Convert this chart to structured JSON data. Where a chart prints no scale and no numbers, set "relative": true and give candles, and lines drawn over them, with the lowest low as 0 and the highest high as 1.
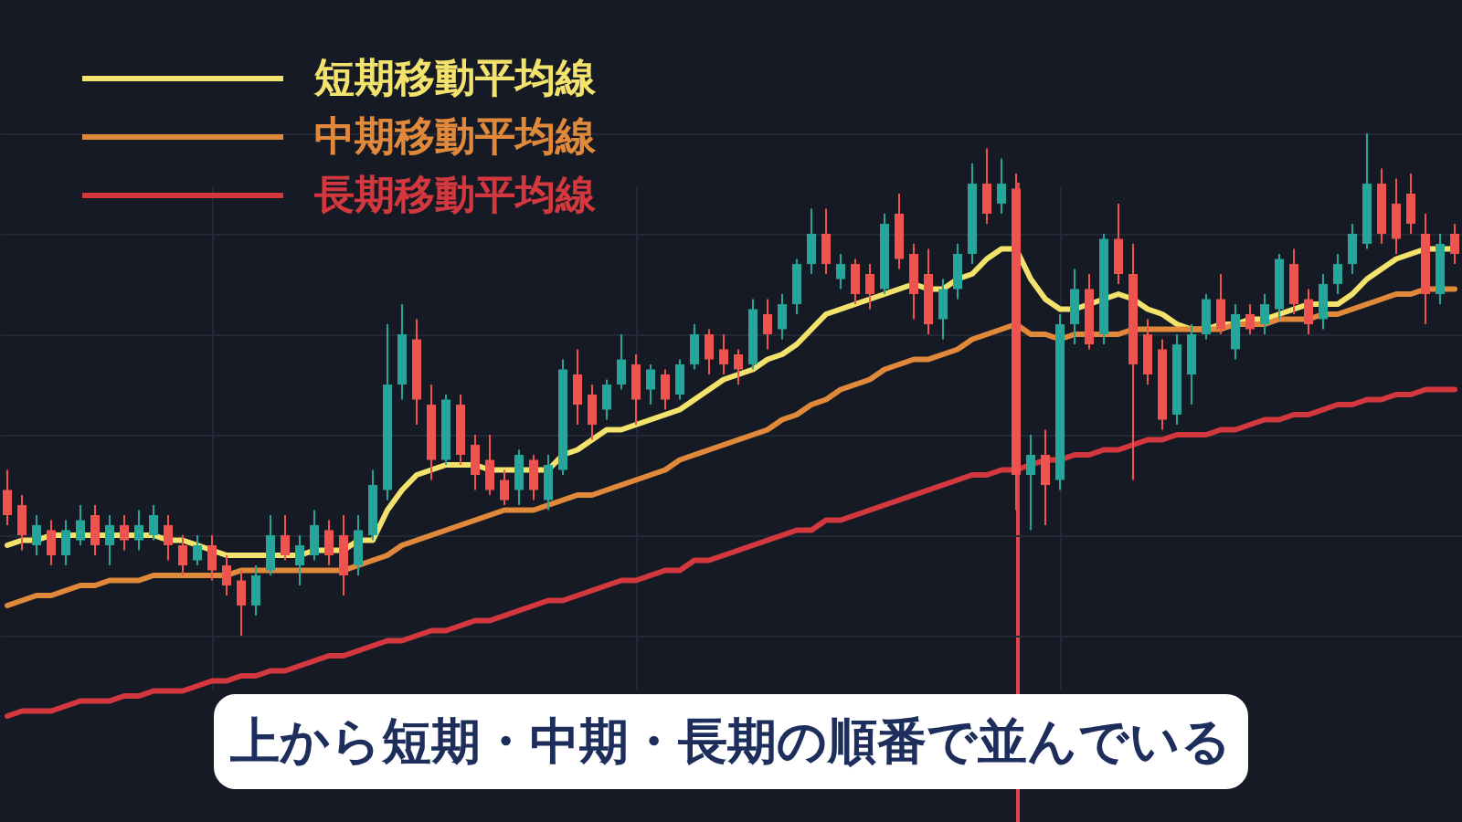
{
  "chart_data": {
    "type": "candlestick",
    "relative": true,
    "legend": "top left",
    "grid": true,
    "categories": [
      null,
      null,
      null,
      null,
      null,
      null,
      null,
      null,
      null,
      null,
      null,
      null,
      null,
      null,
      null,
      null,
      null,
      null,
      null,
      null,
      null,
      null,
      null,
      null,
      null,
      null,
      null,
      null,
      null,
      null,
      null,
      null,
      null,
      null,
      null,
      null,
      null,
      null,
      null,
      null,
      null,
      null,
      null,
      null,
      null,
      null,
      null,
      null,
      null,
      null,
      null,
      null,
      null,
      null,
      null,
      null,
      null,
      null,
      null,
      null,
      null,
      null,
      null,
      null,
      null,
      null,
      null,
      null,
      null,
      null,
      null,
      null,
      null,
      null,
      null,
      null,
      null,
      null,
      null,
      null,
      null,
      null,
      null,
      null,
      null,
      null,
      null,
      null,
      null,
      null,
      null,
      null,
      null,
      null,
      null,
      null,
      null,
      null,
      null,
      null
    ],
    "ohlc": [
      [
        0.29,
        0.33,
        0.22,
        0.24
      ],
      [
        0.26,
        0.28,
        0.17,
        0.2
      ],
      [
        0.18,
        0.24,
        0.16,
        0.22
      ],
      [
        0.21,
        0.23,
        0.14,
        0.16
      ],
      [
        0.16,
        0.23,
        0.14,
        0.21
      ],
      [
        0.19,
        0.26,
        0.18,
        0.23
      ],
      [
        0.24,
        0.26,
        0.16,
        0.18
      ],
      [
        0.18,
        0.24,
        0.14,
        0.22
      ],
      [
        0.22,
        0.24,
        0.17,
        0.19
      ],
      [
        0.19,
        0.25,
        0.17,
        0.22
      ],
      [
        0.2,
        0.26,
        0.19,
        0.24
      ],
      [
        0.22,
        0.24,
        0.15,
        0.18
      ],
      [
        0.18,
        0.2,
        0.12,
        0.14
      ],
      [
        0.15,
        0.2,
        0.14,
        0.18
      ],
      [
        0.18,
        0.2,
        0.11,
        0.13
      ],
      [
        0.14,
        0.16,
        0.08,
        0.1
      ],
      [
        0.11,
        0.13,
        0.0,
        0.06
      ],
      [
        0.06,
        0.14,
        0.04,
        0.12
      ],
      [
        0.13,
        0.24,
        0.12,
        0.2
      ],
      [
        0.2,
        0.24,
        0.15,
        0.16
      ],
      [
        0.14,
        0.2,
        0.1,
        0.18
      ],
      [
        0.16,
        0.25,
        0.15,
        0.22
      ],
      [
        0.21,
        0.23,
        0.14,
        0.16
      ],
      [
        0.2,
        0.24,
        0.08,
        0.12
      ],
      [
        0.14,
        0.24,
        0.12,
        0.21
      ],
      [
        0.2,
        0.33,
        0.19,
        0.3
      ],
      [
        0.29,
        0.62,
        0.27,
        0.5
      ],
      [
        0.5,
        0.66,
        0.47,
        0.6
      ],
      [
        0.59,
        0.63,
        0.42,
        0.47
      ],
      [
        0.46,
        0.5,
        0.31,
        0.35
      ],
      [
        0.35,
        0.48,
        0.34,
        0.47
      ],
      [
        0.46,
        0.48,
        0.34,
        0.36
      ],
      [
        0.38,
        0.4,
        0.29,
        0.32
      ],
      [
        0.35,
        0.4,
        0.28,
        0.29
      ],
      [
        0.31,
        0.33,
        0.26,
        0.27
      ],
      [
        0.29,
        0.37,
        0.26,
        0.36
      ],
      [
        0.35,
        0.36,
        0.27,
        0.29
      ],
      [
        0.27,
        0.36,
        0.25,
        0.34
      ],
      [
        0.33,
        0.55,
        0.32,
        0.53
      ],
      [
        0.52,
        0.57,
        0.42,
        0.46
      ],
      [
        0.48,
        0.5,
        0.39,
        0.42
      ],
      [
        0.45,
        0.51,
        0.43,
        0.5
      ],
      [
        0.5,
        0.6,
        0.49,
        0.55
      ],
      [
        0.54,
        0.56,
        0.42,
        0.47
      ],
      [
        0.49,
        0.54,
        0.46,
        0.53
      ],
      [
        0.52,
        0.53,
        0.45,
        0.47
      ],
      [
        0.48,
        0.55,
        0.47,
        0.54
      ],
      [
        0.54,
        0.62,
        0.53,
        0.6
      ],
      [
        0.6,
        0.61,
        0.52,
        0.55
      ],
      [
        0.57,
        0.6,
        0.52,
        0.54
      ],
      [
        0.56,
        0.57,
        0.5,
        0.53
      ],
      [
        0.54,
        0.67,
        0.53,
        0.65
      ],
      [
        0.64,
        0.67,
        0.57,
        0.6
      ],
      [
        0.61,
        0.68,
        0.59,
        0.66
      ],
      [
        0.66,
        0.75,
        0.64,
        0.74
      ],
      [
        0.74,
        0.85,
        0.72,
        0.8
      ],
      [
        0.8,
        0.85,
        0.72,
        0.74
      ],
      [
        0.71,
        0.76,
        0.69,
        0.74
      ],
      [
        0.74,
        0.75,
        0.66,
        0.68
      ],
      [
        0.72,
        0.74,
        0.65,
        0.68
      ],
      [
        0.69,
        0.84,
        0.68,
        0.82
      ],
      [
        0.84,
        0.88,
        0.73,
        0.75
      ],
      [
        0.76,
        0.78,
        0.63,
        0.68
      ],
      [
        0.72,
        0.77,
        0.6,
        0.62
      ],
      [
        0.63,
        0.71,
        0.59,
        0.69
      ],
      [
        0.69,
        0.78,
        0.67,
        0.76
      ],
      [
        0.76,
        0.94,
        0.74,
        0.9
      ],
      [
        0.9,
        0.97,
        0.82,
        0.84
      ],
      [
        0.86,
        0.95,
        0.84,
        0.9
      ],
      [
        0.89,
        0.92,
        0.25,
        0.32
      ],
      [
        0.32,
        0.4,
        0.21,
        0.36
      ],
      [
        0.36,
        0.41,
        0.22,
        0.3
      ],
      [
        0.31,
        0.64,
        0.29,
        0.62
      ],
      [
        0.62,
        0.73,
        0.58,
        0.69
      ],
      [
        0.69,
        0.72,
        0.57,
        0.58
      ],
      [
        0.6,
        0.8,
        0.58,
        0.79
      ],
      [
        0.79,
        0.86,
        0.7,
        0.72
      ],
      [
        0.72,
        0.78,
        0.31,
        0.54
      ],
      [
        0.6,
        0.63,
        0.5,
        0.52
      ],
      [
        0.57,
        0.59,
        0.41,
        0.43
      ],
      [
        0.44,
        0.6,
        0.42,
        0.58
      ],
      [
        0.52,
        0.62,
        0.46,
        0.6
      ],
      [
        0.6,
        0.68,
        0.59,
        0.67
      ],
      [
        0.67,
        0.72,
        0.6,
        0.61
      ],
      [
        0.57,
        0.66,
        0.55,
        0.64
      ],
      [
        0.64,
        0.66,
        0.6,
        0.61
      ],
      [
        0.62,
        0.68,
        0.6,
        0.66
      ],
      [
        0.65,
        0.76,
        0.63,
        0.75
      ],
      [
        0.74,
        0.77,
        0.64,
        0.66
      ],
      [
        0.67,
        0.69,
        0.6,
        0.62
      ],
      [
        0.63,
        0.72,
        0.61,
        0.7
      ],
      [
        0.7,
        0.76,
        0.68,
        0.74
      ],
      [
        0.74,
        0.82,
        0.72,
        0.8
      ],
      [
        0.78,
        1.0,
        0.77,
        0.9
      ],
      [
        0.9,
        0.93,
        0.78,
        0.8
      ],
      [
        0.86,
        0.91,
        0.76,
        0.79
      ],
      [
        0.88,
        0.92,
        0.8,
        0.82
      ],
      [
        0.8,
        0.84,
        0.62,
        0.68
      ],
      [
        0.68,
        0.8,
        0.66,
        0.78
      ],
      [
        0.8,
        0.82,
        0.74,
        0.76
      ]
    ],
    "colors": [
      "#ef5350",
      "#ef5350",
      "#26a69a",
      "#ef5350",
      "#26a69a",
      "#26a69a",
      "#ef5350",
      "#26a69a",
      "#ef5350",
      "#26a69a",
      "#26a69a",
      "#ef5350",
      "#ef5350",
      "#26a69a",
      "#ef5350",
      "#ef5350",
      "#ef5350",
      "#26a69a",
      "#26a69a",
      "#ef5350",
      "#26a69a",
      "#26a69a",
      "#ef5350",
      "#ef5350",
      "#26a69a",
      "#26a69a",
      "#26a69a",
      "#26a69a",
      "#ef5350",
      "#ef5350",
      "#26a69a",
      "#ef5350",
      "#ef5350",
      "#ef5350",
      "#ef5350",
      "#26a69a",
      "#ef5350",
      "#26a69a",
      "#26a69a",
      "#ef5350",
      "#ef5350",
      "#26a69a",
      "#26a69a",
      "#ef5350",
      "#26a69a",
      "#ef5350",
      "#26a69a",
      "#26a69a",
      "#ef5350",
      "#ef5350",
      "#ef5350",
      "#26a69a",
      "#ef5350",
      "#26a69a",
      "#26a69a",
      "#26a69a",
      "#ef5350",
      "#26a69a",
      "#ef5350",
      "#ef5350",
      "#26a69a",
      "#ef5350",
      "#ef5350",
      "#ef5350",
      "#26a69a",
      "#26a69a",
      "#26a69a",
      "#ef5350",
      "#26a69a",
      "#ef5350",
      "#26a69a",
      "#ef5350",
      "#26a69a",
      "#26a69a",
      "#ef5350",
      "#26a69a",
      "#ef5350",
      "#ef5350",
      "#ef5350",
      "#ef5350",
      "#26a69a",
      "#26a69a",
      "#26a69a",
      "#ef5350",
      "#26a69a",
      "#ef5350",
      "#26a69a",
      "#26a69a",
      "#ef5350",
      "#ef5350",
      "#26a69a",
      "#26a69a",
      "#26a69a",
      "#26a69a",
      "#ef5350",
      "#ef5350",
      "#ef5350",
      "#ef5350",
      "#26a69a",
      "#ef5350"
    ],
    "series": [
      {
        "name": "短期移動平均線",
        "type": "line",
        "color": "#f3e36c",
        "values": [
          0.18,
          0.19,
          0.19,
          0.2,
          0.2,
          0.2,
          0.2,
          0.2,
          0.2,
          0.2,
          0.2,
          0.19,
          0.19,
          0.18,
          0.17,
          0.16,
          0.16,
          0.16,
          0.16,
          0.16,
          0.16,
          0.17,
          0.17,
          0.17,
          0.19,
          0.19,
          0.25,
          0.29,
          0.32,
          0.33,
          0.34,
          0.34,
          0.34,
          0.33,
          0.33,
          0.33,
          0.33,
          0.33,
          0.36,
          0.37,
          0.39,
          0.41,
          0.41,
          0.42,
          0.43,
          0.44,
          0.45,
          0.47,
          0.49,
          0.51,
          0.52,
          0.53,
          0.55,
          0.56,
          0.58,
          0.61,
          0.64,
          0.65,
          0.66,
          0.67,
          0.68,
          0.69,
          0.7,
          0.69,
          0.69,
          0.71,
          0.72,
          0.75,
          0.77,
          0.77,
          0.71,
          0.67,
          0.65,
          0.65,
          0.66,
          0.67,
          0.68,
          0.67,
          0.65,
          0.64,
          0.62,
          0.61,
          0.61,
          0.62,
          0.62,
          0.63,
          0.63,
          0.64,
          0.65,
          0.66,
          0.66,
          0.66,
          0.68,
          0.71,
          0.73,
          0.75,
          0.76,
          0.77,
          0.77,
          0.77
        ]
      },
      {
        "name": "中期移動平均線",
        "type": "line",
        "color": "#e0893b",
        "values": [
          0.06,
          0.07,
          0.08,
          0.08,
          0.09,
          0.1,
          0.1,
          0.11,
          0.11,
          0.11,
          0.12,
          0.12,
          0.12,
          0.12,
          0.12,
          0.12,
          0.13,
          0.13,
          0.13,
          0.13,
          0.13,
          0.13,
          0.13,
          0.13,
          0.14,
          0.15,
          0.16,
          0.18,
          0.19,
          0.2,
          0.21,
          0.22,
          0.23,
          0.24,
          0.25,
          0.25,
          0.25,
          0.26,
          0.27,
          0.28,
          0.28,
          0.29,
          0.3,
          0.31,
          0.32,
          0.33,
          0.35,
          0.36,
          0.37,
          0.38,
          0.39,
          0.4,
          0.41,
          0.43,
          0.44,
          0.46,
          0.47,
          0.49,
          0.5,
          0.51,
          0.53,
          0.54,
          0.55,
          0.55,
          0.56,
          0.57,
          0.59,
          0.6,
          0.61,
          0.62,
          0.6,
          0.6,
          0.59,
          0.6,
          0.6,
          0.6,
          0.6,
          0.61,
          0.61,
          0.61,
          0.61,
          0.61,
          0.61,
          0.61,
          0.62,
          0.62,
          0.62,
          0.63,
          0.63,
          0.63,
          0.64,
          0.64,
          0.65,
          0.66,
          0.67,
          0.68,
          0.68,
          0.69,
          0.69,
          0.69
        ]
      },
      {
        "name": "長期移動平均線",
        "type": "line",
        "color": "#d4383f",
        "values": [
          -0.16,
          -0.15,
          -0.15,
          -0.15,
          -0.14,
          -0.13,
          -0.13,
          -0.13,
          -0.12,
          -0.12,
          -0.11,
          -0.11,
          -0.11,
          -0.1,
          -0.09,
          -0.09,
          -0.08,
          -0.08,
          -0.07,
          -0.07,
          -0.06,
          -0.05,
          -0.04,
          -0.04,
          -0.03,
          -0.02,
          -0.01,
          -0.01,
          0.0,
          0.01,
          0.01,
          0.02,
          0.03,
          0.03,
          0.04,
          0.05,
          0.06,
          0.07,
          0.07,
          0.08,
          0.09,
          0.1,
          0.11,
          0.11,
          0.12,
          0.13,
          0.13,
          0.15,
          0.15,
          0.16,
          0.17,
          0.18,
          0.19,
          0.2,
          0.21,
          0.21,
          0.23,
          0.23,
          0.24,
          0.25,
          0.26,
          0.27,
          0.28,
          0.29,
          0.3,
          0.31,
          0.32,
          0.32,
          0.33,
          0.33,
          0.34,
          0.35,
          0.35,
          0.36,
          0.36,
          0.37,
          0.37,
          0.38,
          0.39,
          0.39,
          0.4,
          0.4,
          0.4,
          0.41,
          0.41,
          0.42,
          0.43,
          0.43,
          0.44,
          0.44,
          0.45,
          0.46,
          0.46,
          0.47,
          0.47,
          0.48,
          0.48,
          0.49,
          0.49,
          0.49
        ]
      }
    ],
    "annotations": [
      "上から短期・中期・長期の順番で並んでいる"
    ]
  }
}
